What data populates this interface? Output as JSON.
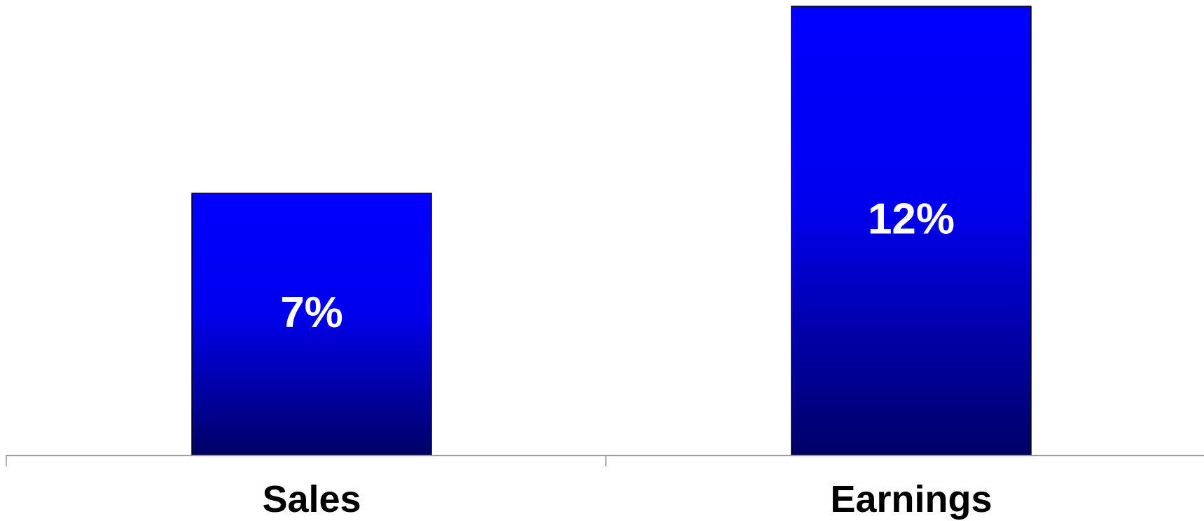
{
  "chart_data": {
    "type": "bar",
    "categories": [
      "Sales",
      "Earnings"
    ],
    "values": [
      7,
      12
    ],
    "data_labels": [
      "7%",
      "12%"
    ],
    "title": "",
    "xlabel": "",
    "ylabel": "",
    "ylim": [
      0,
      12
    ],
    "grid": false,
    "legend": "none",
    "colors": {
      "bar_top": "#0000ff",
      "bar_bottom": "#000066",
      "bar_edge": "#000000",
      "axis": "#999999",
      "label_text": "#ffffff",
      "category_text": "#000000"
    }
  }
}
